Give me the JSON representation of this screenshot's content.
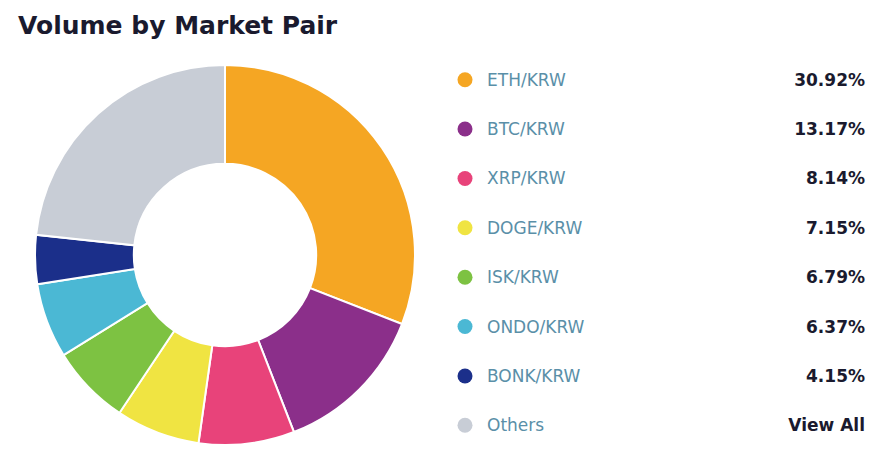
{
  "chart_data": {
    "type": "pie",
    "title": "Volume by Market Pair",
    "categories": [
      "ETH/KRW",
      "BTC/KRW",
      "XRP/KRW",
      "DOGE/KRW",
      "ISK/KRW",
      "ONDO/KRW",
      "BONK/KRW",
      "Others"
    ],
    "values": [
      30.92,
      13.17,
      8.14,
      7.15,
      6.79,
      6.37,
      4.15,
      23.31
    ],
    "value_labels": [
      "30.92%",
      "13.17%",
      "8.14%",
      "7.15%",
      "6.79%",
      "6.37%",
      "4.15%",
      "View All"
    ],
    "colors": [
      "#F5A623",
      "#8B2F8A",
      "#E8437A",
      "#F0E442",
      "#7DC242",
      "#4BB8D4",
      "#1B2F8A",
      "#C8CDD6"
    ],
    "legend": "right"
  }
}
